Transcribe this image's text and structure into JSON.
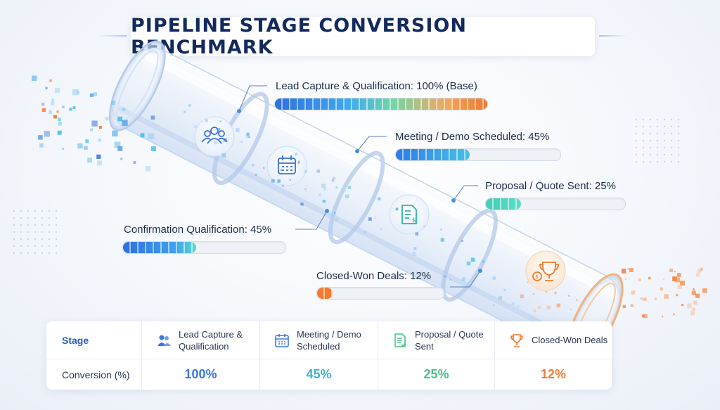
{
  "title": "PIPELINE STAGE CONVERSION BENCHMARK",
  "colors": {
    "blue": "#3a78e0",
    "teal": "#3bb3c8",
    "green": "#4cc08a",
    "orange": "#f07a30",
    "navy": "#132a5e"
  },
  "stages": [
    {
      "label": "Lead Capture & Qualification: 100% (Base)",
      "value": 100,
      "icon": "people-icon"
    },
    {
      "label": "Meeting / Demo Scheduled: 45%",
      "value": 45,
      "icon": "calendar-icon"
    },
    {
      "label": "Proposal / Quote Sent: 25%",
      "value": 25,
      "icon": "document-icon"
    },
    {
      "label": "Confirmation Qualification: 45%",
      "value": 45,
      "icon": "none"
    },
    {
      "label": "Closed-Won Deals: 12%",
      "value": 12,
      "icon": "trophy-icon"
    }
  ],
  "table": {
    "stage_header": "Stage",
    "row_label": "Conversion (%)",
    "columns": [
      {
        "name": "Lead Capture & Qualification",
        "value": "100%",
        "icon": "people-icon",
        "color": "#3a78e0"
      },
      {
        "name": "Meeting / Demo Scheduled",
        "value": "45%",
        "icon": "calendar-icon",
        "color": "#3bb3c8"
      },
      {
        "name": "Proposal / Quote Sent",
        "value": "25%",
        "icon": "document-icon",
        "color": "#4cc08a"
      },
      {
        "name": "Closed-Won Deals",
        "value": "12%",
        "icon": "trophy-icon",
        "color": "#f07a30"
      }
    ]
  },
  "chart_data": {
    "type": "bar",
    "title": "PIPELINE STAGE CONVERSION BENCHMARK",
    "categories": [
      "Lead Capture & Qualification",
      "Meeting / Demo Scheduled",
      "Proposal / Quote Sent",
      "Confirmation Qualification",
      "Closed-Won Deals"
    ],
    "values": [
      100,
      45,
      25,
      45,
      12
    ],
    "ylim": [
      0,
      100
    ],
    "grid": false,
    "legend": "none"
  }
}
